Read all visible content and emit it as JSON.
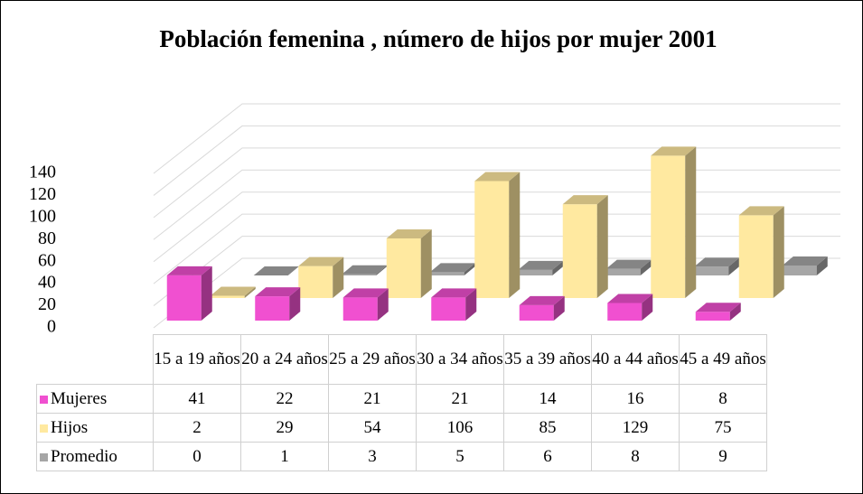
{
  "chart_data": {
    "type": "bar3d",
    "title": "Población femenina , número de hijos por mujer 2001",
    "categories": [
      "15 a 19 años",
      "20 a 24 años",
      "25 a 29 años",
      "30 a 34 años",
      "35 a 39 años",
      "40 a 44 años",
      "45 a 49 años"
    ],
    "series": [
      {
        "name": "Mujeres",
        "color": "#f050d0",
        "values": [
          41,
          22,
          21,
          21,
          14,
          16,
          8
        ]
      },
      {
        "name": "Hijos",
        "color": "#ffe9a0",
        "values": [
          2,
          29,
          54,
          106,
          85,
          129,
          75
        ]
      },
      {
        "name": "Promedio",
        "color": "#a6a6a6",
        "values": [
          0,
          1,
          3,
          5,
          6,
          8,
          9
        ]
      }
    ],
    "ylim": [
      0,
      140
    ],
    "yticks": [
      0,
      20,
      40,
      60,
      80,
      100,
      120,
      140
    ],
    "grid": true,
    "data_table": true
  }
}
